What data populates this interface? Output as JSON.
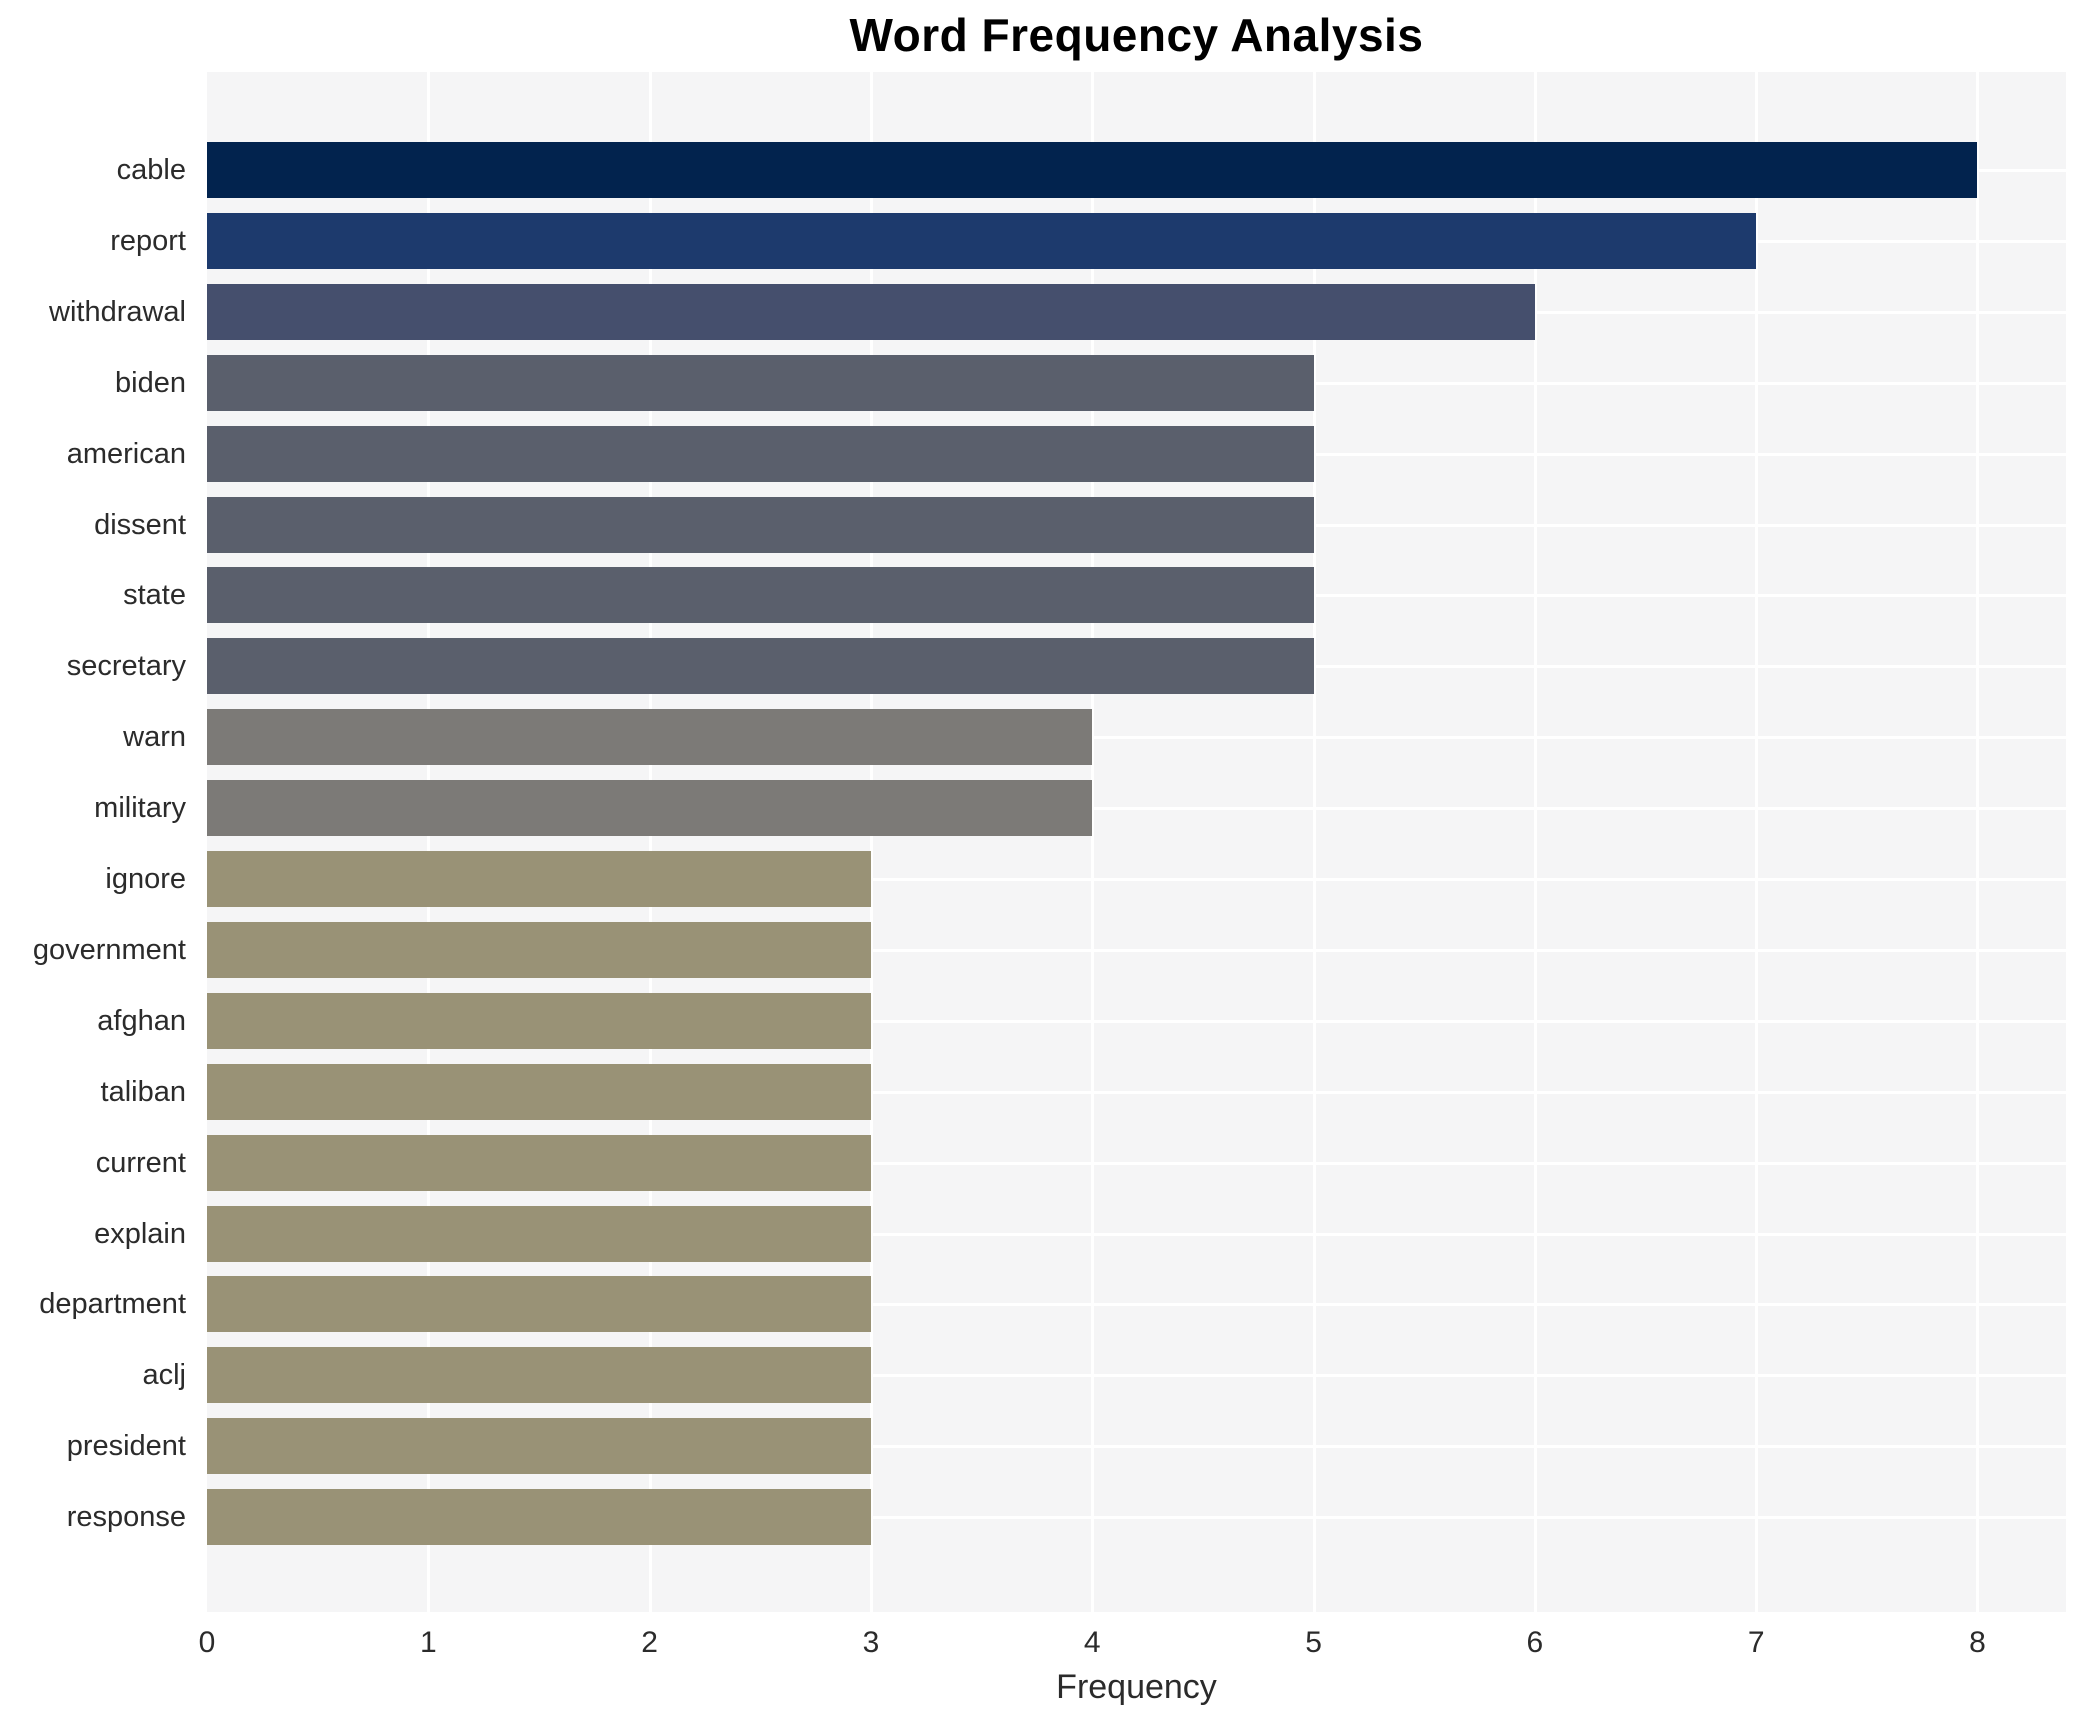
{
  "chart_data": {
    "type": "bar",
    "orientation": "horizontal",
    "title": "Word Frequency Analysis",
    "xlabel": "Frequency",
    "ylabel": "",
    "categories": [
      "cable",
      "report",
      "withdrawal",
      "biden",
      "american",
      "dissent",
      "state",
      "secretary",
      "warn",
      "military",
      "ignore",
      "government",
      "afghan",
      "taliban",
      "current",
      "explain",
      "department",
      "aclj",
      "president",
      "response"
    ],
    "values": [
      8,
      7,
      6,
      5,
      5,
      5,
      5,
      5,
      4,
      4,
      3,
      3,
      3,
      3,
      3,
      3,
      3,
      3,
      3,
      3
    ],
    "bar_colors": [
      "#02234e",
      "#1d3a6d",
      "#454f6d",
      "#5a5f6c",
      "#5a5f6c",
      "#5a5f6c",
      "#5a5f6c",
      "#5a5f6c",
      "#7c7a77",
      "#7c7a77",
      "#999276",
      "#999276",
      "#999276",
      "#999276",
      "#999276",
      "#999276",
      "#999276",
      "#999276",
      "#999276",
      "#999276"
    ],
    "xlim": [
      0,
      8.4
    ],
    "xticks": [
      0,
      1,
      2,
      3,
      4,
      5,
      6,
      7,
      8
    ],
    "grid": true,
    "legend_position": "none",
    "colors": {
      "plot_background": "#f5f5f6",
      "gridline": "#ffffff",
      "tick_text": "#2b2b2b",
      "title_text": "#000000"
    }
  }
}
